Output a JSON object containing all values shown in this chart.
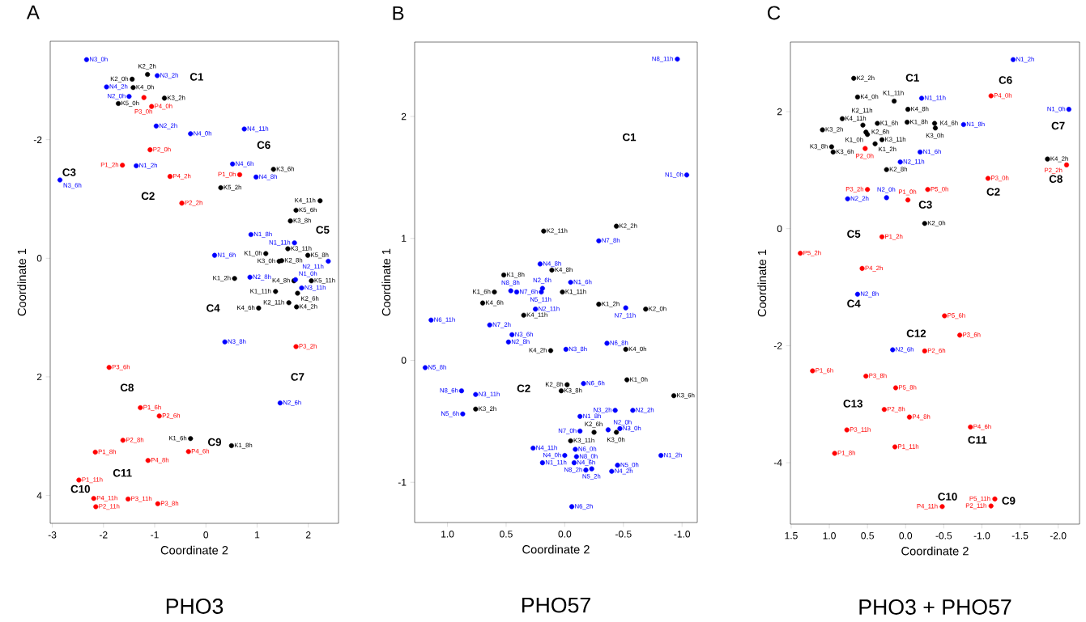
{
  "chart_data": [
    {
      "type": "scatter",
      "title": "A",
      "xlabel": "Coordinate 2",
      "ylabel": "Coordinate 1",
      "marker": "circle",
      "xlim": [
        -3.04,
        2.59
      ],
      "ylim": [
        4.47,
        -3.66
      ],
      "xticks": [
        -3,
        -2,
        -1,
        0,
        1,
        2
      ],
      "yticks": [
        -2,
        0,
        2,
        4
      ],
      "series": [
        {
          "color": "#000000",
          "x": [
            -1.14,
            -1.44,
            -1.42,
            -0.81,
            -1.71,
            0.29,
            1.32,
            2.23,
            1.76,
            1.65,
            1.6,
            1.17,
            1.99,
            1.43,
            1.48,
            0.56,
            1.72,
            2.06,
            1.36,
            1.79,
            1.62,
            1.77,
            1.03,
            -0.3,
            0.5
          ],
          "values": [
            -3.1,
            -3.02,
            -2.88,
            -2.7,
            -2.61,
            -1.19,
            -1.5,
            -0.97,
            -0.81,
            -0.63,
            -0.16,
            -0.08,
            -0.05,
            0.05,
            0.04,
            0.34,
            0.38,
            0.38,
            0.56,
            0.59,
            0.75,
            0.82,
            0.84,
            3.04,
            3.16
          ],
          "value_labels": [
            "K2_2h",
            "K2_0h",
            "K4_0h",
            "K3_2h",
            "K5_0h",
            "K5_2h",
            "K3_6h",
            "K4_11h",
            "K5_6h",
            "K3_8h",
            "K3_11h",
            "K1_0h",
            "K5_8h",
            "K3_0h",
            "K2_8h",
            "K1_2h",
            "K4_8h",
            "K5_11h",
            "K1_11h",
            "K2_6h",
            "K2_11h",
            "K4_2h",
            "K4_6h",
            "K1_6h",
            "K1_8h"
          ]
        },
        {
          "color": "#0000ff",
          "x": [
            -2.33,
            -0.95,
            -1.94,
            -1.5,
            -0.97,
            -0.3,
            -1.36,
            -2.85,
            0.75,
            0.52,
            0.98,
            0.88,
            1.73,
            0.17,
            2.39,
            0.86,
            1.75,
            1.87,
            0.37,
            1.45
          ],
          "values": [
            -3.35,
            -3.08,
            -2.89,
            -2.73,
            -2.23,
            -2.1,
            -1.56,
            -1.32,
            -2.18,
            -1.59,
            -1.37,
            -0.4,
            -0.26,
            -0.05,
            0.05,
            0.32,
            0.36,
            0.5,
            1.41,
            2.44
          ],
          "value_labels": [
            "N3_0h",
            "N3_2h",
            "N4_2h",
            "N2_0h",
            "N2_2h",
            "N4_0h",
            "N1_2h",
            "N3_6h",
            "N4_11h",
            "N4_6h",
            "N4_8h",
            "N1_8h",
            "N1_11h",
            "N1_6h",
            "N2_11h",
            "N2_8h",
            "N1_0h",
            "N3_11h",
            "N3_8h",
            "N2_6h"
          ]
        },
        {
          "color": "#ff0000",
          "x": [
            -1.21,
            -1.06,
            -1.09,
            -1.63,
            -0.7,
            -0.47,
            0.66,
            1.76,
            -1.89,
            -1.28,
            -0.91,
            -0.34,
            -1.62,
            -2.16,
            -1.13,
            -2.48,
            -2.19,
            -2.15,
            -1.52,
            -0.94
          ],
          "values": [
            -2.71,
            -2.56,
            -1.83,
            -1.57,
            -1.38,
            -0.93,
            -1.41,
            1.49,
            1.84,
            2.52,
            2.66,
            3.26,
            3.07,
            3.27,
            3.41,
            3.74,
            4.05,
            4.19,
            4.06,
            4.14
          ],
          "value_labels": [
            "P3_0h",
            "P4_0h",
            "P2_0h",
            "P1_2h",
            "P4_2h",
            "P2_2h",
            "P1_0h",
            "P3_2h",
            "P3_6h",
            "P1_6h",
            "P2_6h",
            "P4_6h",
            "P2_8h",
            "P1_8h",
            "P4_8h",
            "P1_11h",
            "P4_11h",
            "P2_11h",
            "P3_11h",
            "P3_8h"
          ]
        }
      ],
      "annotations": [
        "PHO3",
        "C1",
        "C2",
        "C3",
        "C4",
        "C5",
        "C6",
        "C7",
        "C8",
        "C9",
        "C10",
        "C11"
      ]
    },
    {
      "type": "scatter",
      "title": "B",
      "xlabel": "Coordinate 2",
      "ylabel": "Coordinate 1",
      "marker": "circle",
      "xlim": [
        1.28,
        -1.13
      ],
      "ylim": [
        -1.33,
        2.61
      ],
      "xticks": [
        {
          "value": 1,
          "label": "1.0"
        },
        {
          "value": 0.5,
          "label": "0.5"
        },
        {
          "value": 0,
          "label": "0.0"
        },
        {
          "value": -0.5,
          "label": "-0.5"
        },
        {
          "value": -1,
          "label": "-1.0"
        }
      ],
      "yticks": [
        -1,
        0,
        1,
        2
      ],
      "series": [
        {
          "color": "#000000",
          "x": [
            -0.44,
            0.18,
            0.11,
            0.52,
            0.6,
            0.02,
            0.7,
            -0.29,
            -0.69,
            0.35,
            0.12,
            -0.52,
            -0.02,
            0.03,
            -0.53,
            -0.93,
            0.76,
            -0.25,
            -0.44,
            -0.05
          ],
          "values": [
            1.1,
            1.06,
            0.74,
            0.7,
            0.56,
            0.56,
            0.47,
            0.46,
            0.42,
            0.37,
            0.08,
            0.09,
            -0.2,
            -0.25,
            -0.16,
            -0.29,
            -0.4,
            -0.59,
            -0.59,
            -0.66
          ],
          "value_labels": [
            "K2_2h",
            "K2_11h",
            "K4_8h",
            "K1_8h",
            "K1_6h",
            "K1_11h",
            "K4_6h",
            "K1_2h",
            "K2_0h",
            "K4_11h",
            "K4_2h",
            "K4_0h",
            "K2_8h",
            "K3_8h",
            "K1_0h",
            "K3_6h",
            "K3_2h",
            "K2_6h",
            "K3_0h",
            "K3_11h"
          ]
        },
        {
          "color": "#0000ff",
          "x": [
            -0.96,
            -1.04,
            -0.29,
            0.21,
            -0.05,
            0.19,
            0.46,
            0.41,
            0.2,
            -0.52,
            0.25,
            1.14,
            0.64,
            0.45,
            0.48,
            -0.01,
            -0.36,
            1.19,
            -0.16,
            0.88,
            0.76,
            0.87,
            -0.43,
            -0.58,
            -0.13,
            -0.13,
            -0.37,
            -0.47,
            0.27,
            -0.09,
            0.0,
            -0.1,
            -0.08,
            0.19,
            -0.23,
            -0.18,
            -0.45,
            -0.4,
            -0.82,
            -0.06
          ],
          "values": [
            2.47,
            1.52,
            0.98,
            0.79,
            0.64,
            0.59,
            0.57,
            0.56,
            0.56,
            0.43,
            0.42,
            0.33,
            0.29,
            0.21,
            0.15,
            0.09,
            0.14,
            -0.06,
            -0.19,
            -0.25,
            -0.28,
            -0.44,
            -0.41,
            -0.41,
            -0.46,
            -0.58,
            -0.57,
            -0.56,
            -0.72,
            -0.73,
            -0.78,
            -0.79,
            -0.84,
            -0.84,
            -0.89,
            -0.9,
            -0.86,
            -0.91,
            -0.78,
            -1.2
          ],
          "value_labels": [
            "N8_11h",
            "N1_0h",
            "N7_8h",
            "N4_8h",
            "N1_6h",
            "N2_6h",
            "N8_8h",
            "N7_6h",
            "N5_11h",
            "N7_11h",
            "N2_11h",
            "N6_11h",
            "N7_2h",
            "N3_6h",
            "N2_8h",
            "N3_8h",
            "N6_8h",
            "N5_8h",
            "N6_6h",
            "N8_6h",
            "N3_11h",
            "N5_6h",
            "N3_2h",
            "N2_2h",
            "N1_8h",
            "N7_0h",
            "N2_0h",
            "N3_0h",
            "N4_11h",
            "N6_0h",
            "N4_0h",
            "N8_0h",
            "N4_6h",
            "N1_11h",
            "N5_2h",
            "N8_2h",
            "N5_0h",
            "N4_2h",
            "N1_2h",
            "N6_2h"
          ]
        }
      ],
      "annotations": [
        "PHO57",
        "C1",
        "C2"
      ]
    },
    {
      "type": "scatter",
      "title": "C",
      "xlabel": "Coordinate 2",
      "ylabel": "Coordinate 1",
      "marker": "circle",
      "xlim": [
        1.51,
        -2.28
      ],
      "ylim": [
        -5.05,
        3.19
      ],
      "xticks": [
        {
          "value": 1.5,
          "label": "1.5"
        },
        {
          "value": 1,
          "label": "1.0"
        },
        {
          "value": 0.5,
          "label": "0.5"
        },
        {
          "value": 0,
          "label": "0.0"
        },
        {
          "value": -0.5,
          "label": "-0.5"
        },
        {
          "value": -1,
          "label": "-1.0"
        },
        {
          "value": -1.5,
          "label": "-1.5"
        },
        {
          "value": -2,
          "label": "-2.0"
        }
      ],
      "yticks": [
        -4,
        -2,
        0,
        2
      ],
      "series": [
        {
          "color": "#000000",
          "x": [
            0.68,
            0.63,
            0.15,
            -0.03,
            0.83,
            0.37,
            -0.02,
            -0.38,
            -0.39,
            1.09,
            0.56,
            0.52,
            0.5,
            0.4,
            0.31,
            0.97,
            0.95,
            0.25,
            -1.86,
            -0.25
          ],
          "values": [
            2.57,
            2.25,
            2.18,
            2.04,
            1.88,
            1.8,
            1.82,
            1.8,
            1.72,
            1.69,
            1.77,
            1.65,
            1.61,
            1.45,
            1.52,
            1.4,
            1.31,
            1.01,
            1.19,
            0.09
          ],
          "value_labels": [
            "K2_2h",
            "K4_0h",
            "K1_11h",
            "K4_8h",
            "K4_11h",
            "K1_6h",
            "K1_8h",
            "K4_6h",
            "K3_0h",
            "K3_2h",
            "K2_11h",
            "K2_6h",
            "K1_0h",
            "K1_2h",
            "K3_11h",
            "K3_8h",
            "K3_6h",
            "K2_8h",
            "K4_2h",
            "K2_0h"
          ]
        },
        {
          "color": "#0000ff",
          "x": [
            -1.41,
            -0.21,
            -2.14,
            -0.76,
            -0.19,
            0.07,
            0.76,
            0.25,
            0.63,
            0.17
          ],
          "values": [
            2.89,
            2.23,
            2.04,
            1.78,
            1.31,
            1.14,
            0.51,
            0.53,
            -1.12,
            -2.07
          ],
          "value_labels": [
            "N1_2h",
            "N1_11h",
            "N1_0h",
            "N1_8h",
            "N1_6h",
            "N2_11h",
            "N2_2h",
            "N2_0h",
            "N2_8h",
            "N2_6h"
          ]
        },
        {
          "color": "#ff0000",
          "x": [
            -1.12,
            0.53,
            -2.11,
            -1.08,
            -0.29,
            0.5,
            -0.03,
            0.31,
            1.38,
            0.57,
            -0.51,
            -0.71,
            -0.25,
            1.22,
            0.52,
            0.13,
            0.28,
            -0.05,
            0.77,
            0.14,
            0.93,
            -0.85,
            -1.17,
            -1.12,
            -0.48
          ],
          "values": [
            2.27,
            1.37,
            1.09,
            0.86,
            0.67,
            0.67,
            0.49,
            -0.14,
            -0.42,
            -0.68,
            -1.49,
            -1.82,
            -2.09,
            -2.43,
            -2.52,
            -2.72,
            -3.09,
            -3.22,
            -3.44,
            -3.73,
            -3.84,
            -3.39,
            -4.62,
            -4.74,
            -4.75
          ],
          "value_labels": [
            "P4_0h",
            "P2_0h",
            "P2_2h",
            "P3_0h",
            "P5_0h",
            "P3_2h",
            "P1_0h",
            "P1_2h",
            "P5_2h",
            "P4_2h",
            "P5_6h",
            "P3_6h",
            "P2_6h",
            "P1_6h",
            "P3_8h",
            "P5_8h",
            "P2_8h",
            "P4_8h",
            "P3_11h",
            "P1_11h",
            "P1_8h",
            "P4_6h",
            "P5_11h",
            "P2_11h",
            "P4_11h"
          ]
        }
      ],
      "annotations": [
        "PHO3 + PHO57",
        "C1",
        "C2",
        "C3",
        "C4",
        "C5",
        "C6",
        "C7",
        "C8",
        "C9",
        "C10",
        "C11",
        "C12",
        "C13"
      ]
    }
  ]
}
